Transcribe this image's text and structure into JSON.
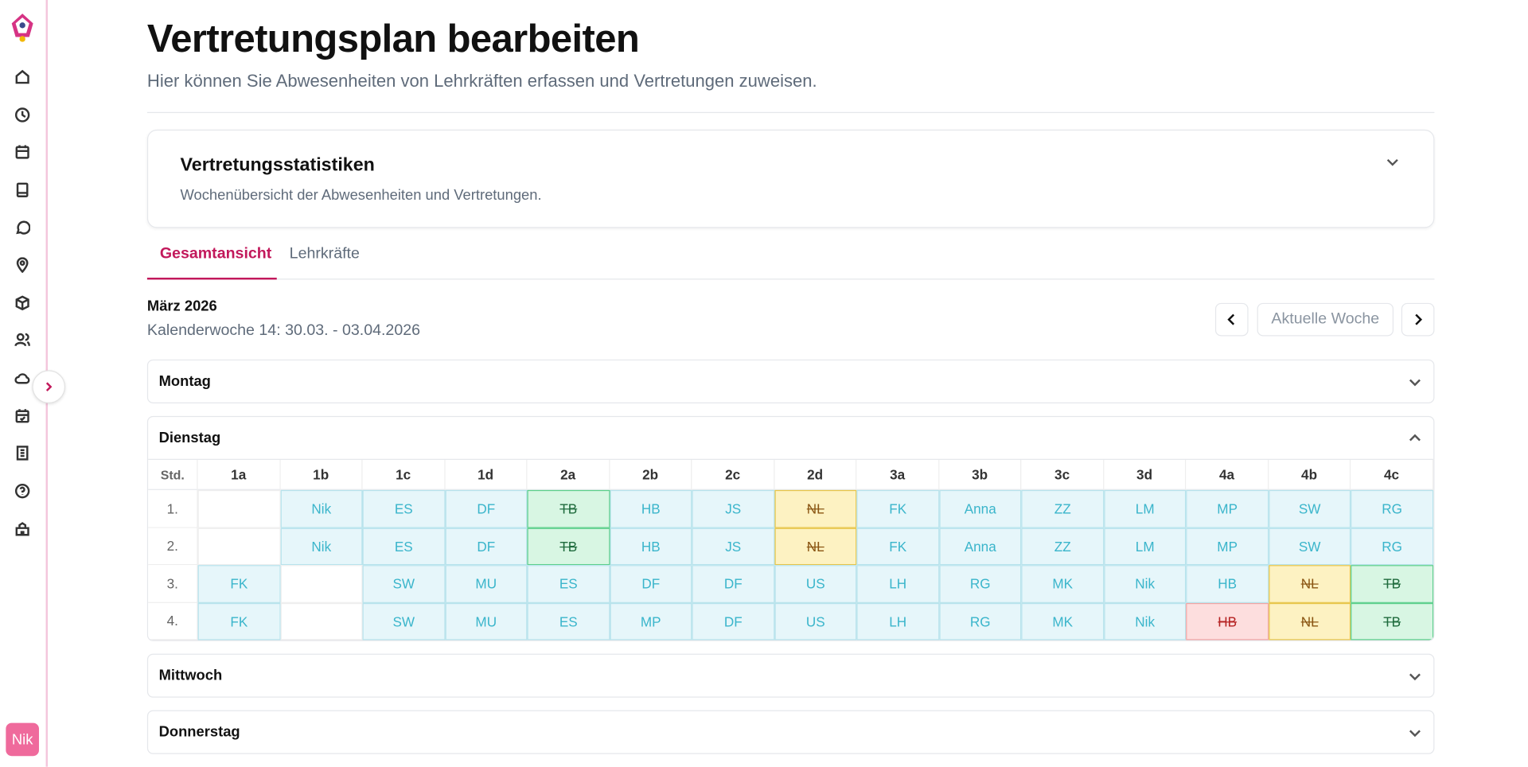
{
  "sidebar": {
    "avatar": "Nik"
  },
  "header": {
    "title": "Vertretungsplan bearbeiten",
    "subtitle": "Hier können Sie Abwesenheiten von Lehrkräften erfassen und Vertretungen zuweisen."
  },
  "stats_card": {
    "title": "Vertretungsstatistiken",
    "description": "Wochenübersicht der Abwesenheiten und Vertretungen."
  },
  "tabs": [
    "Gesamtansicht",
    "Lehrkräfte"
  ],
  "week": {
    "month": "März 2026",
    "label": "Kalenderwoche 14: 30.03. - 03.04.2026",
    "current_button": "Aktuelle Woche"
  },
  "days": [
    "Montag",
    "Dienstag",
    "Mittwoch",
    "Donnerstag"
  ],
  "table": {
    "header": [
      "Std.",
      "1a",
      "1b",
      "1c",
      "1d",
      "2a",
      "2b",
      "2c",
      "2d",
      "3a",
      "3b",
      "3c",
      "3d",
      "4a",
      "4b",
      "4c"
    ],
    "rows": [
      {
        "period": "1.",
        "cells": [
          null,
          "Nik",
          "ES",
          "DF",
          {
            "text": "TB",
            "status": "green"
          },
          "HB",
          "JS",
          {
            "text": "NL",
            "status": "yellow"
          },
          "FK",
          "Anna",
          "ZZ",
          "LM",
          "MP",
          "SW",
          "RG"
        ]
      },
      {
        "period": "2.",
        "cells": [
          null,
          "Nik",
          "ES",
          "DF",
          {
            "text": "TB",
            "status": "green"
          },
          "HB",
          "JS",
          {
            "text": "NL",
            "status": "yellow"
          },
          "FK",
          "Anna",
          "ZZ",
          "LM",
          "MP",
          "SW",
          "RG"
        ]
      },
      {
        "period": "3.",
        "cells": [
          "FK",
          null,
          "SW",
          "MU",
          "ES",
          "DF",
          "DF",
          "US",
          "LH",
          "RG",
          "MK",
          "Nik",
          "HB",
          {
            "text": "NL",
            "status": "yellow"
          },
          {
            "text": "TB",
            "status": "green"
          }
        ]
      },
      {
        "period": "4.",
        "cells": [
          "FK",
          null,
          "SW",
          "MU",
          "ES",
          "MP",
          "DF",
          "US",
          "LH",
          "RG",
          "MK",
          "Nik",
          {
            "text": "HB",
            "status": "red"
          },
          {
            "text": "NL",
            "status": "yellow"
          },
          {
            "text": "TB",
            "status": "green"
          }
        ]
      }
    ]
  }
}
